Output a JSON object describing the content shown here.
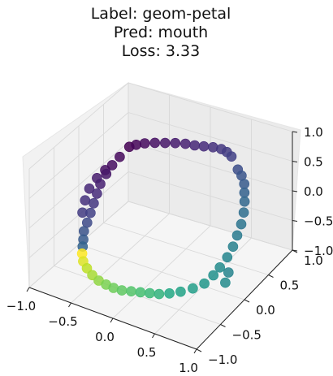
{
  "chart_data": {
    "type": "scatter",
    "projection": "3d",
    "title_lines": [
      "Label: geom-petal",
      "Pred: mouth",
      "Loss: 3.33"
    ],
    "xlabel": "",
    "ylabel": "",
    "zlabel": "",
    "grid": true,
    "colormap": "viridis",
    "x_ticks": [
      -1.0,
      -0.5,
      0.0,
      0.5,
      1.0
    ],
    "x_tick_labels": [
      "−1.0",
      "−0.5",
      "0.0",
      "0.5",
      "1.0"
    ],
    "y_ticks": [
      -1.0,
      -0.5,
      0.0,
      0.5,
      1.0
    ],
    "y_tick_labels": [
      "−1.0",
      "−0.5",
      "0.0",
      "0.5",
      "1.0"
    ],
    "z_ticks": [
      -1.0,
      -0.5,
      0.0,
      0.5,
      1.0
    ],
    "z_tick_labels": [
      "−1.0",
      "−0.5",
      "0.0",
      "0.5",
      "1.0"
    ],
    "points_description_only": "closed 3D curve colored by parameter",
    "points": [
      [
        -0.76,
        0.62,
        0.3,
        0.0
      ],
      [
        -0.7,
        0.66,
        0.33,
        0.02
      ],
      [
        -0.62,
        0.7,
        0.36,
        0.04
      ],
      [
        -0.52,
        0.74,
        0.38,
        0.06
      ],
      [
        -0.42,
        0.78,
        0.39,
        0.08
      ],
      [
        -0.32,
        0.82,
        0.4,
        0.1
      ],
      [
        -0.22,
        0.86,
        0.4,
        0.12
      ],
      [
        -0.12,
        0.88,
        0.4,
        0.14
      ],
      [
        -0.02,
        0.9,
        0.41,
        0.16
      ],
      [
        0.08,
        0.92,
        0.42,
        0.18
      ],
      [
        0.18,
        0.92,
        0.43,
        0.2
      ],
      [
        0.26,
        0.9,
        0.43,
        0.22
      ],
      [
        0.34,
        0.86,
        0.42,
        0.24
      ],
      [
        0.5,
        0.72,
        0.38,
        0.3
      ],
      [
        0.58,
        0.66,
        0.36,
        0.33
      ],
      [
        0.66,
        0.58,
        0.32,
        0.36
      ],
      [
        0.72,
        0.48,
        0.28,
        0.39
      ],
      [
        0.78,
        0.38,
        0.24,
        0.42
      ],
      [
        0.84,
        0.26,
        0.18,
        0.45
      ],
      [
        0.88,
        0.14,
        0.1,
        0.48
      ],
      [
        0.9,
        0.02,
        0.02,
        0.51
      ],
      [
        0.92,
        -0.1,
        -0.06,
        0.54
      ],
      [
        0.92,
        -0.22,
        -0.14,
        0.57
      ],
      [
        0.9,
        -0.34,
        -0.22,
        0.6
      ],
      [
        0.88,
        -0.44,
        -0.28,
        0.63
      ],
      [
        0.98,
        -0.3,
        -0.3,
        0.56
      ],
      [
        1.0,
        -0.4,
        -0.38,
        0.6
      ],
      [
        0.84,
        -0.56,
        -0.34,
        0.66
      ],
      [
        0.76,
        -0.66,
        -0.38,
        0.69
      ],
      [
        0.66,
        -0.74,
        -0.42,
        0.72
      ],
      [
        0.56,
        -0.8,
        -0.45,
        0.75
      ],
      [
        0.46,
        -0.84,
        -0.48,
        0.78
      ],
      [
        0.36,
        -0.86,
        -0.5,
        0.8
      ],
      [
        0.26,
        -0.88,
        -0.52,
        0.82
      ],
      [
        0.16,
        -0.9,
        -0.54,
        0.84
      ],
      [
        0.06,
        -0.92,
        -0.56,
        0.86
      ],
      [
        -0.04,
        -0.92,
        -0.57,
        0.88
      ],
      [
        -0.14,
        -0.9,
        -0.58,
        0.9
      ],
      [
        -0.24,
        -0.88,
        -0.58,
        0.92
      ],
      [
        -0.34,
        -0.84,
        -0.57,
        0.94
      ],
      [
        -0.44,
        -0.78,
        -0.55,
        0.96
      ],
      [
        -0.52,
        -0.72,
        -0.52,
        0.98
      ],
      [
        -0.58,
        -0.64,
        -0.48,
        1.0
      ],
      [
        -0.62,
        -0.56,
        -0.44,
        0.4
      ],
      [
        -0.66,
        -0.48,
        -0.4,
        0.36
      ],
      [
        -0.7,
        -0.4,
        -0.34,
        0.32
      ],
      [
        -0.72,
        -0.3,
        -0.28,
        0.28
      ],
      [
        -0.74,
        -0.2,
        -0.2,
        0.24
      ],
      [
        -0.76,
        -0.1,
        -0.12,
        0.2
      ],
      [
        -0.78,
        0.0,
        -0.04,
        0.16
      ],
      [
        -0.8,
        0.1,
        0.04,
        0.12
      ],
      [
        -0.8,
        0.22,
        0.12,
        0.08
      ],
      [
        -0.8,
        0.34,
        0.18,
        0.05
      ],
      [
        -0.78,
        0.46,
        0.24,
        0.03
      ],
      [
        -0.86,
        0.3,
        0.1,
        0.06
      ],
      [
        -0.9,
        0.2,
        0.02,
        0.1
      ],
      [
        -0.92,
        0.08,
        -0.08,
        0.14
      ],
      [
        -0.9,
        -0.04,
        -0.18,
        0.18
      ],
      [
        -0.86,
        -0.16,
        -0.28,
        0.22
      ]
    ]
  }
}
